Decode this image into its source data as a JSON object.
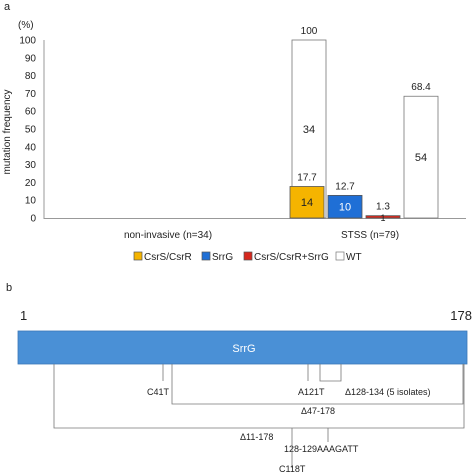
{
  "panels": {
    "a": "a",
    "b": "b"
  },
  "chart_data": {
    "type": "bar",
    "ylabel": "mutation frequency",
    "yunit": "(%)",
    "ylim": [
      0,
      110
    ],
    "yticks": [
      0,
      10,
      20,
      30,
      40,
      50,
      60,
      70,
      80,
      90,
      100
    ],
    "categories": [
      "non-invasive (n=34)",
      "STSS (n=79)"
    ],
    "series": [
      {
        "name": "CsrS/CsrR",
        "color": "#f5b400",
        "values": [
          0,
          17.7
        ],
        "counts": [
          null,
          "14"
        ],
        "labels": [
          null,
          "17.7"
        ]
      },
      {
        "name": "SrrG",
        "color": "#1f6fd6",
        "values": [
          0,
          12.7
        ],
        "counts": [
          null,
          "10"
        ],
        "labels": [
          null,
          "12.7"
        ]
      },
      {
        "name": "CsrS/CsrR+SrrG",
        "color": "#d6281e",
        "values": [
          0,
          1.3
        ],
        "counts": [
          null,
          "1"
        ],
        "labels": [
          null,
          "1.3"
        ]
      },
      {
        "name": "WT",
        "color": "#ffffff",
        "values": [
          100,
          68.4
        ],
        "counts": [
          "34",
          "54"
        ],
        "labels": [
          "100",
          "68.4"
        ]
      }
    ],
    "legend": "bottom",
    "grid": false
  },
  "gene_map": {
    "name": "SrrG",
    "start": 1,
    "end": 178,
    "start_label": "1",
    "end_label": "178",
    "color": "#4a90d6",
    "mutations": [
      {
        "label": "C41T",
        "pos": 41
      },
      {
        "label": "A121T",
        "pos": 121
      },
      {
        "label": "Δ128-134 (5  isolates)",
        "from": 128,
        "to": 134
      },
      {
        "label": "Δ47-178",
        "from": 47,
        "to": 178
      },
      {
        "label": "Δ11-178",
        "from": 11,
        "to": 178
      },
      {
        "label": "128-129AAAGATT",
        "pos": 128.5
      },
      {
        "label": "C118T",
        "pos": 118
      }
    ]
  }
}
